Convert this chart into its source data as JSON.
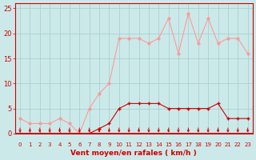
{
  "hours": [
    0,
    1,
    2,
    3,
    4,
    5,
    6,
    7,
    8,
    9,
    10,
    11,
    12,
    13,
    14,
    15,
    16,
    17,
    18,
    19,
    20,
    21,
    22,
    23
  ],
  "wind_avg": [
    0,
    0,
    0,
    0,
    0,
    0,
    0,
    0,
    1,
    2,
    5,
    6,
    6,
    6,
    6,
    5,
    5,
    5,
    5,
    5,
    6,
    3,
    3,
    3
  ],
  "wind_gust": [
    3,
    2,
    2,
    2,
    3,
    2,
    0,
    5,
    8,
    10,
    19,
    19,
    19,
    18,
    19,
    23,
    16,
    24,
    18,
    23,
    18,
    19,
    19,
    16
  ],
  "background_color": "#cce9e9",
  "grid_color": "#aacfcf",
  "avg_color": "#cc0000",
  "gust_color": "#ff9999",
  "arrow_color": "#cc0000",
  "xlabel": "Vent moyen/en rafales ( km/h )",
  "xlabel_color": "#cc0000",
  "tick_color": "#cc0000",
  "ylim": [
    0,
    26
  ],
  "yticks": [
    0,
    5,
    10,
    15,
    20,
    25
  ],
  "figsize": [
    3.2,
    2.0
  ],
  "dpi": 100
}
